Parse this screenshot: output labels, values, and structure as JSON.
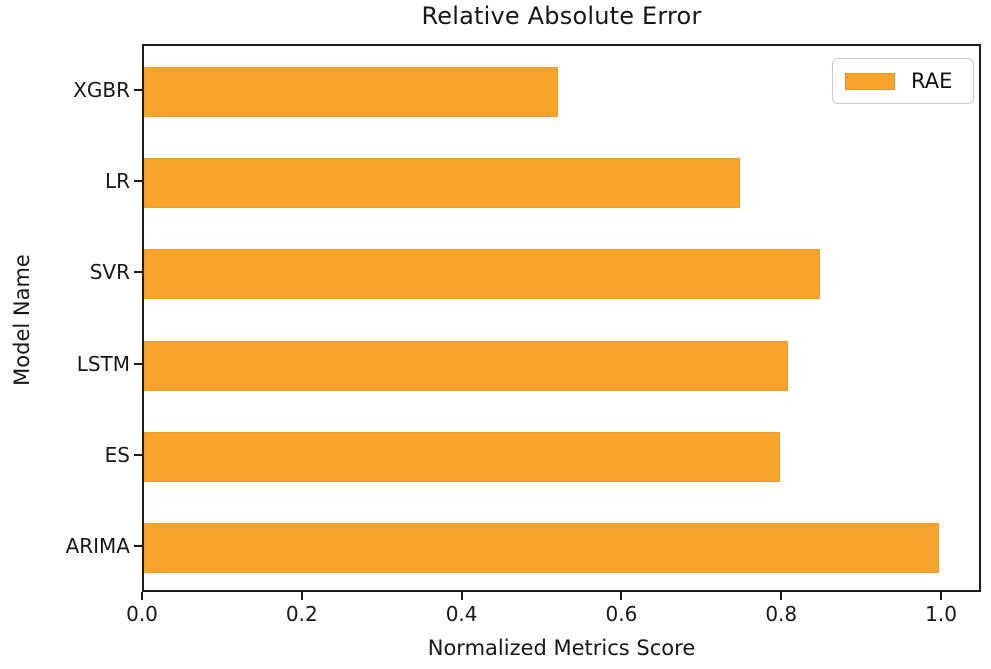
{
  "chart_data": {
    "type": "bar",
    "orientation": "horizontal",
    "title": "Relative Absolute Error",
    "xlabel": "Normalized Metrics Score",
    "ylabel": "Model Name",
    "categories": [
      "XGBR",
      "LR",
      "SVR",
      "LSTM",
      "ES",
      "ARIMA"
    ],
    "values": [
      0.52,
      0.75,
      0.85,
      0.81,
      0.8,
      1.0
    ],
    "series_name": "RAE",
    "xlim": [
      0,
      1.05
    ],
    "xtick_labels": [
      "0.0",
      "0.2",
      "0.4",
      "0.6",
      "0.8",
      "1.0"
    ],
    "xtick_values": [
      0.0,
      0.2,
      0.4,
      0.6,
      0.8,
      1.0
    ],
    "grid": false,
    "legend": {
      "label": "RAE",
      "position": "upper right"
    },
    "colors": {
      "bar_fill": "#f7a42c",
      "bar_edge": "#ef9c20",
      "spine": "#1c1c1c",
      "legend_border": "#cccccc",
      "text": "#171717"
    }
  }
}
